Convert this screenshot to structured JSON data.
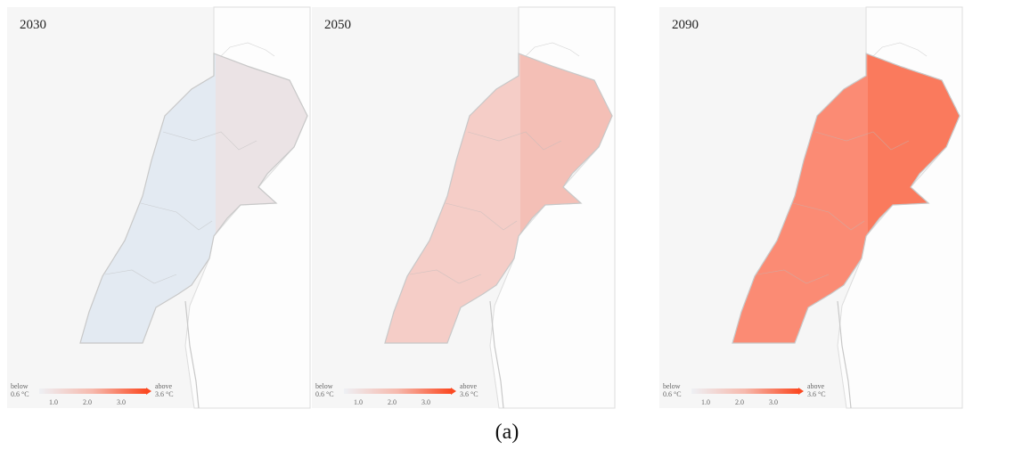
{
  "panels": [
    {
      "title": "2030",
      "legend": {
        "below": "below",
        "low": "0.6 °C",
        "above": "above",
        "high": "3.6 °C",
        "ticks": [
          "1.0",
          "2.0",
          "3.0"
        ]
      }
    },
    {
      "title": "2050",
      "legend": {
        "below": "below",
        "low": "0.6 °C",
        "above": "above",
        "high": "3.6 °C",
        "ticks": [
          "1.0",
          "2.0",
          "3.0"
        ]
      }
    },
    {
      "title": "2090",
      "legend": {
        "below": "below",
        "low": "0.6 °C",
        "above": "above",
        "high": "3.6 °C",
        "ticks": [
          "1.0",
          "2.0",
          "3.0"
        ]
      }
    }
  ],
  "caption": "(a)"
}
